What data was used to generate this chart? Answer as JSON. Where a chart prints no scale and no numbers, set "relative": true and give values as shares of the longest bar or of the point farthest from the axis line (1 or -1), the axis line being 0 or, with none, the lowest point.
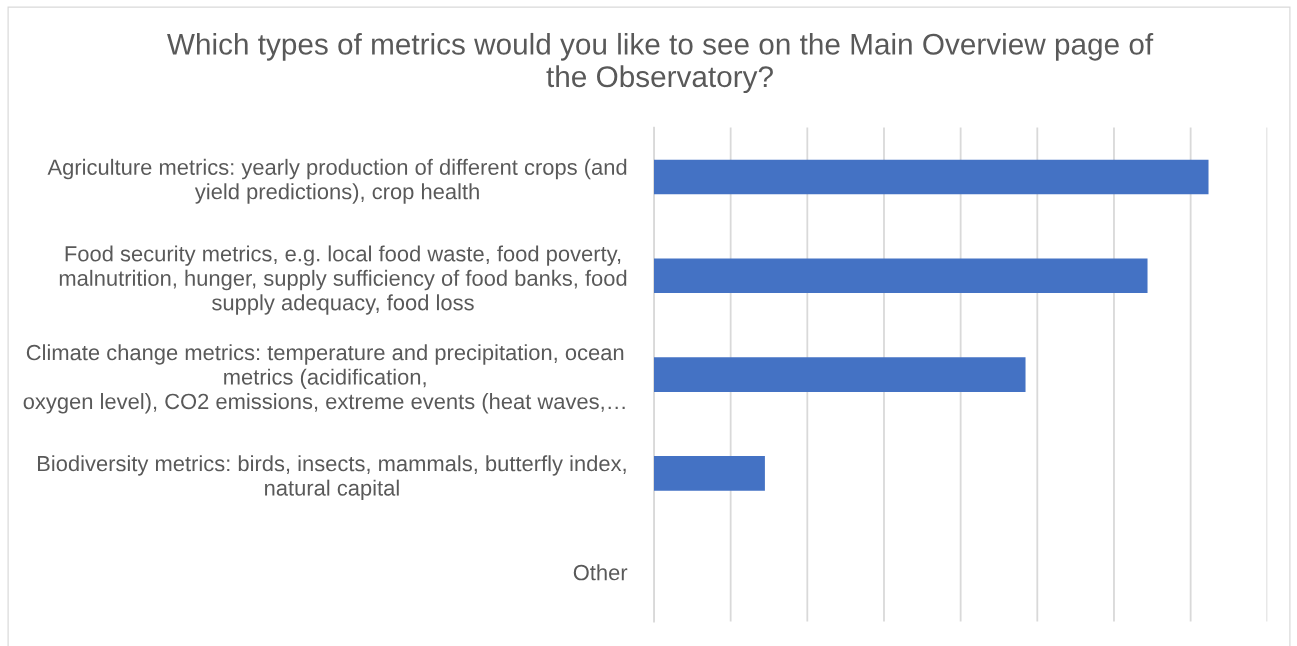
{
  "chart_data": {
    "type": "bar",
    "orientation": "horizontal",
    "relative": true,
    "title": "Which types of metrics would you like to see on the Main Overview page of\nthe Observatory?",
    "categories": [
      "Agriculture metrics: yearly production of different crops (and\nyield predictions), crop health",
      "Food security metrics, e.g. local food waste, food poverty,\nmalnutrition, hunger, supply sufficiency of food banks, food\nsupply adequacy, food loss",
      "Climate change metrics: temperature and precipitation, ocean\nmetrics (acidification,\noxygen level), CO2 emissions, extreme events (heat waves,…",
      "Biodiversity metrics: birds, insects, mammals, butterfly index,\nnatural capital",
      "Other"
    ],
    "values": [
      1,
      0.89,
      0.67,
      0.2,
      0
    ],
    "color": "#4472c4",
    "grid": "x",
    "tick_labels": "y"
  }
}
